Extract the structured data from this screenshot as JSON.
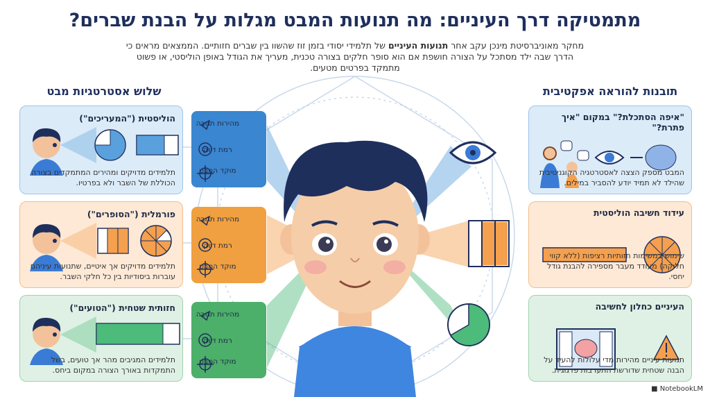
{
  "header": {
    "title": "מתמטיקה דרך העיניים: מה תנועות המבט מגלות על הבנת שברים?",
    "subtitle": {
      "intro": "מחקר מאוניברסיטת מינכן עקב אחר",
      "bold": "תנועות העיניים",
      "rest": "של תלמידי יסודי בזמן זוז שהשוו בין שברים חזותיים. הממצאים מראים כי הדרך שבה ילד מסתכל על הצורה חושפת אם הוא סופר חלקים בצורה טכנית, מעריך את הגודל באופן הוליסטי, או פשוט מתמקד בפרטים מטעים."
    }
  },
  "strategies": {
    "title": "שלוש אסטרטגיות מבט",
    "cards": [
      {
        "title": "הוליסטית (\"המעריכים\")",
        "text": "תלמידים מדויקים ומהירים המתמקדים בצורה הכוללת של השבר ולא בפרטיו."
      },
      {
        "title": "פורמלית (\"הסופרים\")",
        "text": "תלמידים מדויקים אך איטיים, שתנועות עיניהם עוברות ביסודיות בין כל חלקי השבר."
      },
      {
        "title": "חזותית שטחית (\"הטועים\")",
        "text": "תלמידים המגיבים מהר אך טועים, בשל התמקדות באורך הצורה במקום ביחס."
      }
    ]
  },
  "metric_boxes": [
    {
      "items": [
        "מהירות תגובה",
        "רמת דיוק",
        "מוקד המבט"
      ]
    },
    {
      "items": [
        "מהירות תגובה",
        "רמת דיוק",
        "מוקד המבט"
      ]
    },
    {
      "items": [
        "מהירות תגובה",
        "רמת דיוק",
        "מוקד המבט"
      ]
    }
  ],
  "insights": {
    "title": "תובנות להוראה אפקטיבית",
    "cards": [
      {
        "title": "\"איפה הסתכלת?\" במקום \"איך פתרת?\"",
        "text": "המבט מספק הצצה לאסטרטגיה הקוגניטיבית שהילד לא תמיד יודע להסביר במילים."
      },
      {
        "title": "עידוד חשיבה הוליסטית",
        "text": "שימוש במשימות חזותיות רציפות (ללא קווי חלוקה) מעודד מעבר מספירה להבנת גודל יחסי."
      },
      {
        "title": "העיניים כחלון לחשיבה",
        "text": "תנועות עיניים מהירות מדי עלולות להעיד על הבנה שטחית שדורשת התערבות פדגוגית."
      }
    ]
  },
  "footer": {
    "brand": "NotebookLM"
  }
}
